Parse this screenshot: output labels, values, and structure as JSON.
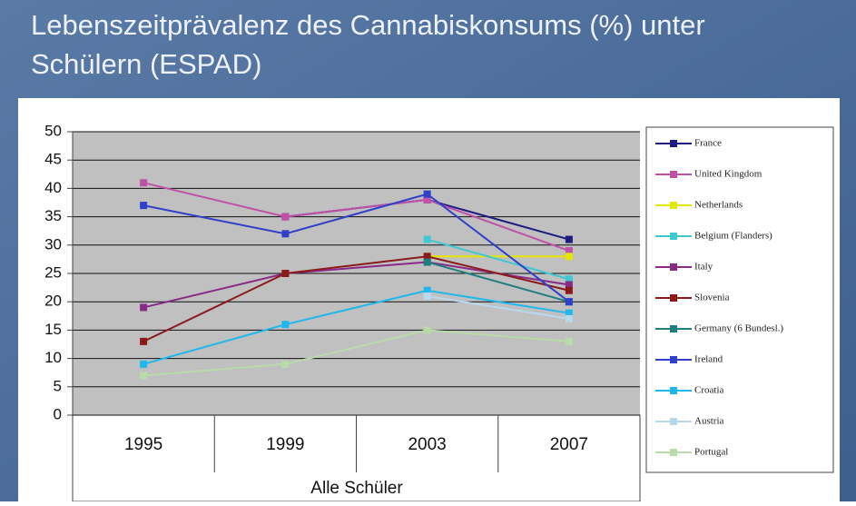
{
  "chart_data": {
    "type": "line",
    "title": [
      "Lebenszeitprävalenz des Cannabiskonsums (%) unter",
      "Schülern (ESPAD)"
    ],
    "xlabel": "Alle Schüler",
    "categories": [
      "1995",
      "1999",
      "2003",
      "2007"
    ],
    "ylim": [
      0,
      50
    ],
    "yticks": [
      0,
      5,
      10,
      15,
      20,
      25,
      30,
      35,
      40,
      45,
      50
    ],
    "grid": true,
    "series": [
      {
        "name": "France",
        "color": "#1c1c80",
        "values": [
          null,
          35,
          38,
          31
        ]
      },
      {
        "name": "United Kingdom",
        "color": "#c050a8",
        "values": [
          41,
          35,
          38,
          29
        ]
      },
      {
        "name": "Netherlands",
        "color": "#e6e600",
        "values": [
          null,
          null,
          28,
          28
        ]
      },
      {
        "name": "Belgium (Flanders)",
        "color": "#40c8d0",
        "values": [
          null,
          null,
          31,
          24
        ]
      },
      {
        "name": "Italy",
        "color": "#882a88",
        "values": [
          19,
          25,
          27,
          23
        ]
      },
      {
        "name": "Slovenia",
        "color": "#8b1a1a",
        "values": [
          13,
          25,
          28,
          22
        ]
      },
      {
        "name": "Germany (6 Bundesl.)",
        "color": "#1f7f80",
        "values": [
          null,
          null,
          27,
          20
        ]
      },
      {
        "name": "Ireland",
        "color": "#3040c8",
        "values": [
          37,
          32,
          39,
          20
        ]
      },
      {
        "name": "Croatia",
        "color": "#20b8ec",
        "values": [
          9,
          16,
          22,
          18
        ]
      },
      {
        "name": "Austria",
        "color": "#b8d8ec",
        "values": [
          null,
          null,
          21,
          17
        ]
      },
      {
        "name": "Portugal",
        "color": "#b8dca8",
        "values": [
          7,
          9,
          15,
          13
        ]
      }
    ]
  }
}
